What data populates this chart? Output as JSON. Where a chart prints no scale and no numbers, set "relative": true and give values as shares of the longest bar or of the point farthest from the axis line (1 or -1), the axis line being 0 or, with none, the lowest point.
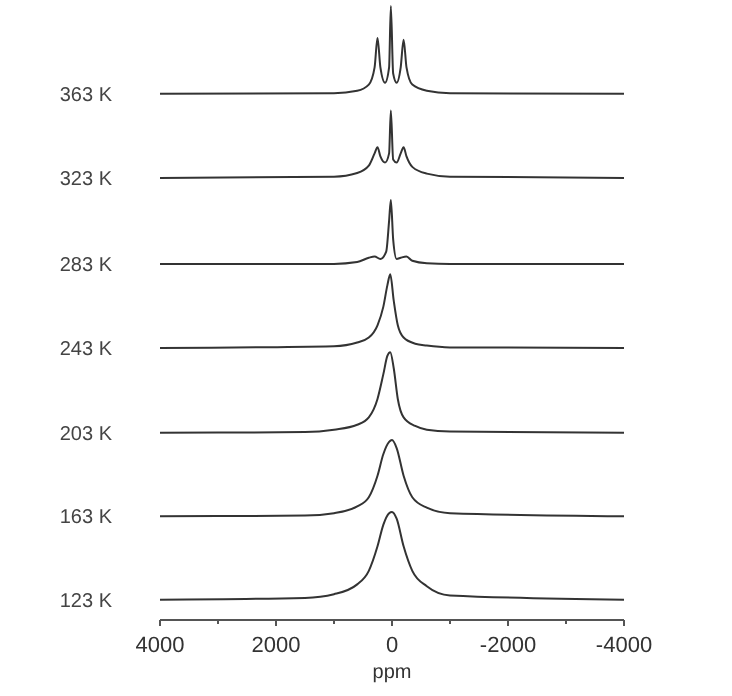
{
  "chart_data": {
    "type": "line",
    "relative": true,
    "xlabel": "ppm",
    "xlim": [
      4000,
      -4000
    ],
    "xticks": [
      4000,
      {
        "value": 3000,
        "label": null
      },
      2000,
      {
        "value": 1000,
        "label": null
      },
      0,
      {
        "value": -1000,
        "label": null
      },
      -2000,
      {
        "value": -3000,
        "label": null
      },
      -4000
    ],
    "series": [
      {
        "name": "363 K",
        "color": "#333333",
        "x": [
          4000,
          1000,
          600,
          400,
          300,
          250,
          200,
          120,
          50,
          20,
          -20,
          -80,
          -150,
          -200,
          -250,
          -350,
          -600,
          -1000,
          -4000
        ],
        "values": [
          0.857,
          0.858,
          0.862,
          0.872,
          0.9,
          0.948,
          0.9,
          0.875,
          0.9,
          1.0,
          0.89,
          0.875,
          0.9,
          0.945,
          0.9,
          0.872,
          0.862,
          0.858,
          0.857
        ]
      },
      {
        "name": "323 K",
        "color": "#333333",
        "x": [
          4000,
          1000,
          600,
          400,
          300,
          250,
          200,
          120,
          50,
          20,
          -20,
          -80,
          -150,
          -200,
          -250,
          -350,
          -600,
          -1000,
          -4000
        ],
        "values": [
          0.72,
          0.722,
          0.728,
          0.74,
          0.76,
          0.77,
          0.755,
          0.745,
          0.76,
          0.83,
          0.75,
          0.745,
          0.76,
          0.77,
          0.755,
          0.738,
          0.727,
          0.722,
          0.72
        ]
      },
      {
        "name": "283 K",
        "color": "#333333",
        "x": [
          4000,
          1000,
          600,
          400,
          300,
          200,
          100,
          50,
          20,
          -20,
          -80,
          -150,
          -250,
          -350,
          -600,
          -1000,
          -4000
        ],
        "values": [
          0.58,
          0.58,
          0.583,
          0.59,
          0.592,
          0.588,
          0.6,
          0.65,
          0.684,
          0.62,
          0.588,
          0.59,
          0.592,
          0.585,
          0.581,
          0.58,
          0.58
        ]
      },
      {
        "name": "243 K",
        "color": "#333333",
        "x": [
          4000,
          1000,
          600,
          400,
          250,
          150,
          80,
          30,
          -30,
          -100,
          -200,
          -400,
          -600,
          -1000,
          -4000
        ],
        "values": [
          0.443,
          0.446,
          0.452,
          0.46,
          0.48,
          0.51,
          0.545,
          0.563,
          0.52,
          0.48,
          0.46,
          0.45,
          0.447,
          0.444,
          0.443
        ]
      },
      {
        "name": "203 K",
        "color": "#333333",
        "x": [
          4000,
          1500,
          1000,
          600,
          400,
          250,
          150,
          80,
          30,
          -30,
          -100,
          -200,
          -400,
          -600,
          -1000,
          -4000
        ],
        "values": [
          0.305,
          0.306,
          0.31,
          0.318,
          0.33,
          0.36,
          0.4,
          0.43,
          0.436,
          0.41,
          0.36,
          0.33,
          0.316,
          0.31,
          0.307,
          0.305
        ]
      },
      {
        "name": "163 K",
        "color": "#333333",
        "x": [
          4000,
          1500,
          1000,
          600,
          400,
          250,
          150,
          50,
          0,
          -80,
          -200,
          -350,
          -600,
          -1000,
          -4000
        ],
        "values": [
          0.169,
          0.17,
          0.174,
          0.185,
          0.2,
          0.235,
          0.27,
          0.29,
          0.293,
          0.28,
          0.235,
          0.2,
          0.183,
          0.174,
          0.169
        ]
      },
      {
        "name": "123 K",
        "color": "#333333",
        "x": [
          4000,
          1500,
          1000,
          600,
          400,
          250,
          150,
          50,
          0,
          -80,
          -200,
          -350,
          -600,
          -1000,
          -4000
        ],
        "values": [
          0.033,
          0.036,
          0.042,
          0.058,
          0.08,
          0.12,
          0.155,
          0.174,
          0.176,
          0.165,
          0.12,
          0.08,
          0.055,
          0.04,
          0.033
        ]
      }
    ]
  }
}
